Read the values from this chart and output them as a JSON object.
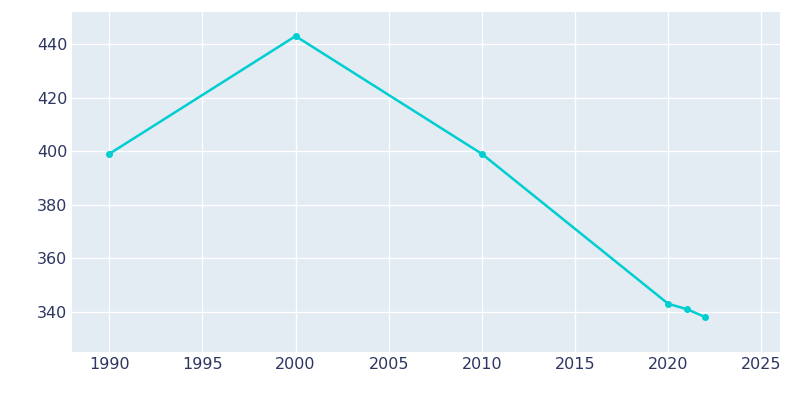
{
  "years": [
    1990,
    2000,
    2010,
    2020,
    2021,
    2022
  ],
  "population": [
    399,
    443,
    399,
    343,
    341,
    338
  ],
  "line_color": "#00CED1",
  "axes_bg_color": "#E3EBF3",
  "fig_bg_color": "#ffffff",
  "xlim": [
    1988,
    2026
  ],
  "ylim": [
    325,
    452
  ],
  "xticks": [
    1990,
    1995,
    2000,
    2005,
    2010,
    2015,
    2020,
    2025
  ],
  "yticks": [
    340,
    360,
    380,
    400,
    420,
    440
  ],
  "grid_color": "#ffffff",
  "line_width": 1.8,
  "marker": "o",
  "marker_size": 4,
  "tick_label_color": "#2d3561",
  "tick_label_size": 11.5
}
